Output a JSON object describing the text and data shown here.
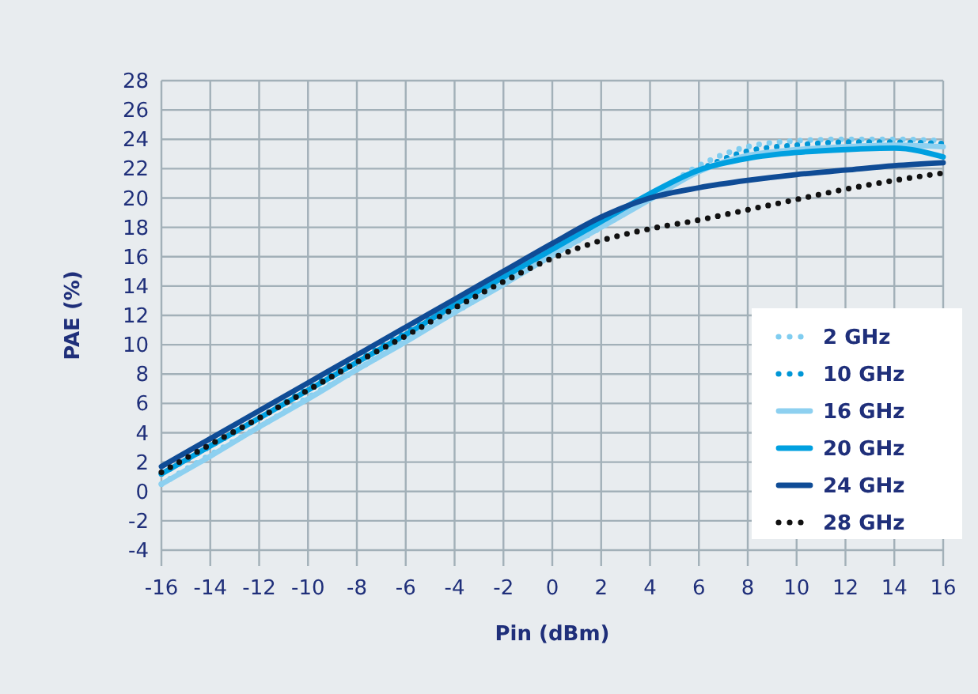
{
  "chart_data": {
    "type": "line",
    "xlabel": "Pin (dBm)",
    "ylabel": "PAE (%)",
    "x": [
      -16,
      -14,
      -12,
      -10,
      -8,
      -6,
      -4,
      -2,
      0,
      2,
      4,
      6,
      8,
      10,
      12,
      14,
      16
    ],
    "xlim": [
      -16,
      16
    ],
    "xticks": [
      -16,
      -14,
      -12,
      -10,
      -8,
      -6,
      -4,
      -2,
      0,
      2,
      4,
      6,
      8,
      10,
      12,
      14,
      16
    ],
    "ylim": [
      -4,
      28
    ],
    "yticks": [
      -4,
      -2,
      0,
      2,
      4,
      6,
      8,
      10,
      12,
      14,
      16,
      18,
      20,
      22,
      24,
      26,
      28
    ],
    "grid": true,
    "legend": "right",
    "marker": "none",
    "series": [
      {
        "name": "2 GHz",
        "color": "#80cdf0",
        "line_style": "dotted",
        "values": [
          0.5,
          2.5,
          4.4,
          6.4,
          8.3,
          10.3,
          12.2,
          14.2,
          16.1,
          18,
          20,
          22.2,
          23.5,
          23.9,
          24,
          24,
          23.9
        ]
      },
      {
        "name": "10 GHz",
        "color": "#0096d6",
        "line_style": "dotted",
        "values": [
          1.2,
          3.1,
          5,
          7,
          8.9,
          10.8,
          12.7,
          14.6,
          16.4,
          18.2,
          20.1,
          21.9,
          23.2,
          23.6,
          23.8,
          23.8,
          23.7
        ]
      },
      {
        "name": "16 GHz",
        "color": "#8dd0f0",
        "line_style": "solid",
        "values": [
          0.5,
          2.4,
          4.4,
          6.3,
          8.3,
          10.2,
          12.2,
          14.1,
          16.1,
          18,
          19.9,
          21.8,
          22.9,
          23.3,
          23.5,
          23.6,
          23.5
        ]
      },
      {
        "name": "20 GHz",
        "color": "#00a0e0",
        "line_style": "solid",
        "values": [
          1.2,
          3.1,
          5,
          6.9,
          8.8,
          10.7,
          12.7,
          14.6,
          16.5,
          18.4,
          20.3,
          21.9,
          22.7,
          23.1,
          23.3,
          23.4,
          22.8
        ]
      },
      {
        "name": "24 GHz",
        "color": "#0f4c96",
        "line_style": "solid",
        "values": [
          1.7,
          3.6,
          5.5,
          7.4,
          9.3,
          11.2,
          13.1,
          15,
          16.9,
          18.7,
          20,
          20.7,
          21.2,
          21.6,
          21.9,
          22.2,
          22.4
        ]
      },
      {
        "name": "28 GHz",
        "color": "#111111",
        "line_style": "dotted",
        "values": [
          1.3,
          3.2,
          5,
          6.9,
          8.8,
          10.6,
          12.5,
          14.3,
          15.9,
          17.1,
          17.9,
          18.5,
          19.2,
          19.9,
          20.6,
          21.2,
          21.7
        ]
      }
    ]
  }
}
